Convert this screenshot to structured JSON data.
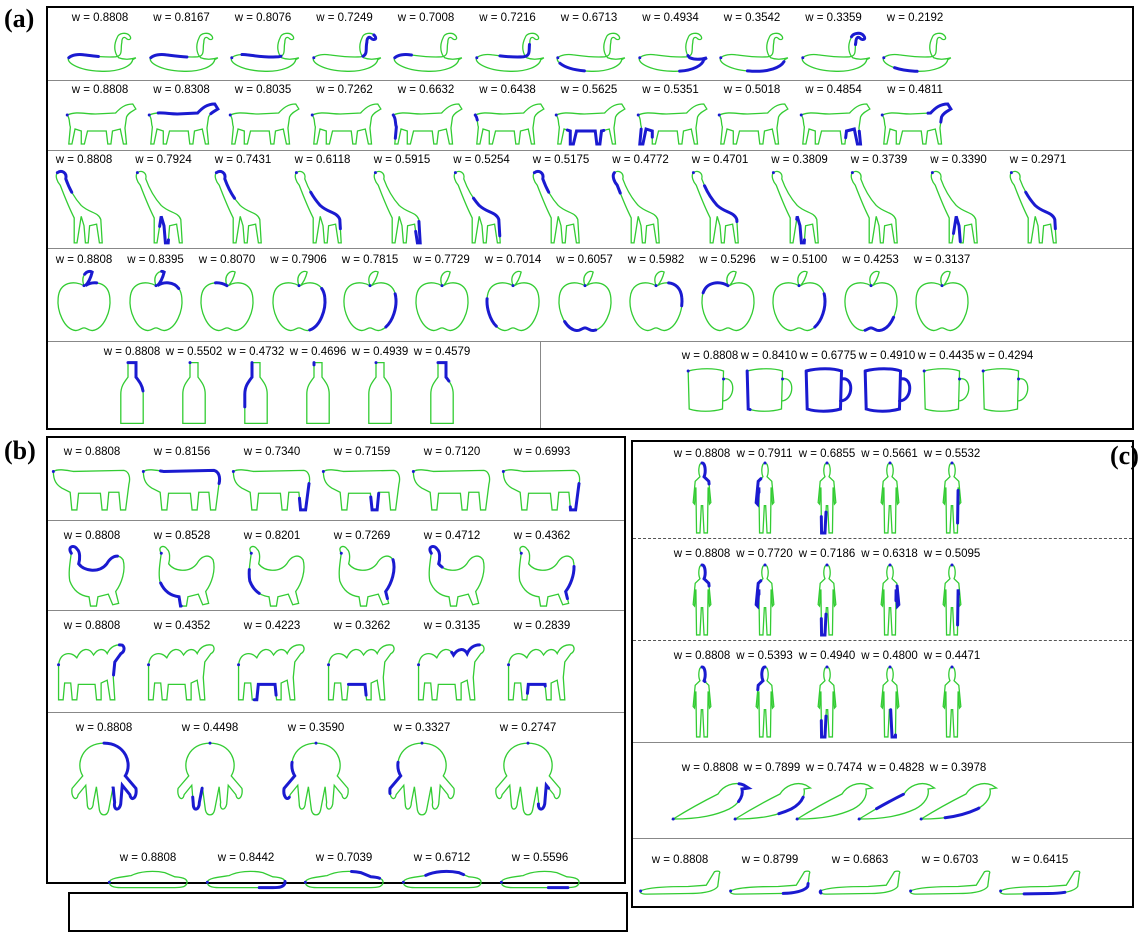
{
  "figure": {
    "panel_labels": {
      "a": "(a)",
      "b": "(b)",
      "c": "(c)"
    },
    "weight_prefix": "w = ",
    "colors": {
      "contour": "#33cc33",
      "highlight": "#1a1ad0",
      "frame": "#000000",
      "separator": "#888888"
    },
    "rows": [
      {
        "id": "a-swan",
        "shape": "swan",
        "weights": [
          "0.8808",
          "0.8167",
          "0.8076",
          "0.7249",
          "0.7008",
          "0.7216",
          "0.6713",
          "0.4934",
          "0.3542",
          "0.3359",
          "0.2192"
        ]
      },
      {
        "id": "a-horse",
        "shape": "horse",
        "weights": [
          "0.8808",
          "0.8308",
          "0.8035",
          "0.7262",
          "0.6632",
          "0.6438",
          "0.5625",
          "0.5351",
          "0.5018",
          "0.4854",
          "0.4811"
        ]
      },
      {
        "id": "a-giraffe",
        "shape": "giraffe",
        "weights": [
          "0.8808",
          "0.7924",
          "0.7431",
          "0.6118",
          "0.5915",
          "0.5254",
          "0.5175",
          "0.4772",
          "0.4701",
          "0.3809",
          "0.3739",
          "0.3390",
          "0.2971"
        ]
      },
      {
        "id": "a-apple",
        "shape": "apple",
        "weights": [
          "0.8808",
          "0.8395",
          "0.8070",
          "0.7906",
          "0.7815",
          "0.7729",
          "0.7014",
          "0.6057",
          "0.5982",
          "0.5296",
          "0.5100",
          "0.4253",
          "0.3137"
        ]
      },
      {
        "id": "a-bottle",
        "shape": "bottle",
        "weights": [
          "0.8808",
          "0.5502",
          "0.4732",
          "0.4696",
          "0.4939",
          "0.4579"
        ]
      },
      {
        "id": "a-mug",
        "shape": "mug",
        "weights": [
          "0.8808",
          "0.8410",
          "0.6775",
          "0.4910",
          "0.4435",
          "0.4294"
        ]
      },
      {
        "id": "b-cow",
        "shape": "cow",
        "weights": [
          "0.8808",
          "0.8156",
          "0.7340",
          "0.7159",
          "0.7120",
          "0.6993"
        ]
      },
      {
        "id": "b-rooster",
        "shape": "rooster",
        "weights": [
          "0.8808",
          "0.8528",
          "0.8201",
          "0.7269",
          "0.4712",
          "0.4362"
        ]
      },
      {
        "id": "b-camel",
        "shape": "camel",
        "weights": [
          "0.8808",
          "0.4352",
          "0.4223",
          "0.3262",
          "0.3135",
          "0.2839"
        ]
      },
      {
        "id": "b-octopus",
        "shape": "octopus",
        "weights": [
          "0.8808",
          "0.4498",
          "0.3590",
          "0.3327",
          "0.2747"
        ]
      },
      {
        "id": "b-car",
        "shape": "car",
        "weights": [
          "0.8808",
          "0.8442",
          "0.7039",
          "0.6712",
          "0.5596"
        ]
      },
      {
        "id": "c-person1",
        "shape": "person",
        "weights": [
          "0.8808",
          "0.7911",
          "0.6855",
          "0.5661",
          "0.5532"
        ]
      },
      {
        "id": "c-person2",
        "shape": "person",
        "weights": [
          "0.8808",
          "0.7720",
          "0.7186",
          "0.6318",
          "0.5095"
        ]
      },
      {
        "id": "c-person3",
        "shape": "person",
        "weights": [
          "0.8808",
          "0.5393",
          "0.4940",
          "0.4800",
          "0.4471"
        ]
      },
      {
        "id": "c-bird",
        "shape": "bird",
        "weights": [
          "0.8808",
          "0.7899",
          "0.7474",
          "0.4828",
          "0.3978"
        ]
      },
      {
        "id": "c-plane",
        "shape": "plane",
        "weights": [
          "0.8808",
          "0.8799",
          "0.6863",
          "0.6703",
          "0.6415"
        ]
      }
    ]
  }
}
